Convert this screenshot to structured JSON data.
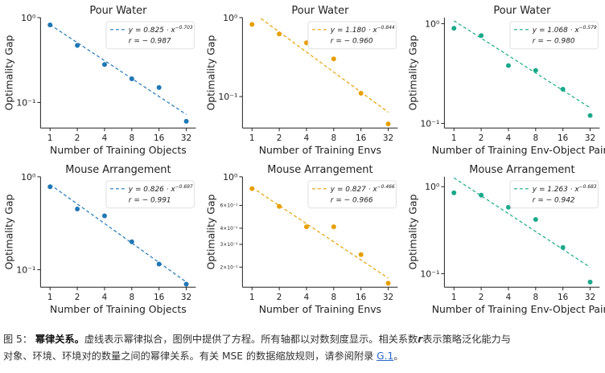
{
  "chart_data": [
    {
      "type": "scatter",
      "title": "Pour Water",
      "xlabel": "Number of Training Objects",
      "ylabel": "Optimality Gap",
      "x": [
        1,
        2,
        4,
        8,
        16,
        32
      ],
      "values": [
        0.82,
        0.47,
        0.28,
        0.19,
        0.15,
        0.06
      ],
      "color": "#1f77b4",
      "fit": {
        "a": 0.825,
        "b": 0.703
      },
      "equation": "y = 0.825 · x",
      "exponent": "−0.703",
      "r": "r = − 0.987",
      "ylim": [
        0.05,
        1.0
      ],
      "yticks": [
        {
          "v": 1.0,
          "t": "10⁰"
        },
        {
          "v": 0.1,
          "t": "10⁻¹"
        }
      ],
      "xticks": [
        "1",
        "2",
        "4",
        "8",
        "16",
        "32"
      ]
    },
    {
      "type": "scatter",
      "title": "Pour Water",
      "xlabel": "Number of Training Envs",
      "ylabel": "Optimality Gap",
      "x": [
        1,
        2,
        4,
        8,
        16,
        32
      ],
      "values": [
        0.82,
        0.62,
        0.48,
        0.3,
        0.11,
        0.045
      ],
      "color": "#e69f00",
      "fit": {
        "a": 1.18,
        "b": 0.844
      },
      "equation": "y = 1.180 · x",
      "exponent": "−0.844",
      "r": "r = − 0.960",
      "ylim": [
        0.04,
        1.0
      ],
      "yticks": [
        {
          "v": 1.0,
          "t": "10⁰"
        },
        {
          "v": 0.1,
          "t": "10⁻¹"
        }
      ],
      "xticks": [
        "1",
        "2",
        "4",
        "8",
        "16",
        "32"
      ]
    },
    {
      "type": "scatter",
      "title": "Pour Water",
      "xlabel": "Number of Training Env-Object Pairs",
      "ylabel": "Optimality Gap",
      "x": [
        1,
        2,
        4,
        8,
        16,
        32
      ],
      "values": [
        0.9,
        0.76,
        0.38,
        0.34,
        0.22,
        0.12
      ],
      "color": "#1aa98b",
      "fit": {
        "a": 1.068,
        "b": 0.579
      },
      "equation": "y = 1.068 · x",
      "exponent": "−0.579",
      "r": "r = − 0.980",
      "ylim": [
        0.09,
        1.15
      ],
      "yticks": [
        {
          "v": 1.0,
          "t": "10⁰"
        },
        {
          "v": 0.1,
          "t": "10⁻¹"
        }
      ],
      "xticks": [
        "1",
        "2",
        "4",
        "8",
        "16",
        "32"
      ]
    },
    {
      "type": "scatter",
      "title": "Mouse Arrangement",
      "xlabel": "Number of Training Objects",
      "ylabel": "Optimality Gap",
      "x": [
        1,
        2,
        4,
        8,
        16,
        32
      ],
      "values": [
        0.78,
        0.45,
        0.38,
        0.2,
        0.115,
        0.07
      ],
      "color": "#1f77b4",
      "fit": {
        "a": 0.826,
        "b": 0.697
      },
      "equation": "y = 0.826 · x",
      "exponent": "−0.697",
      "r": "r = − 0.991",
      "ylim": [
        0.065,
        1.0
      ],
      "yticks": [
        {
          "v": 1.0,
          "t": "10⁰"
        },
        {
          "v": 0.1,
          "t": "10⁻¹"
        }
      ],
      "xticks": [
        "1",
        "2",
        "4",
        "8",
        "16",
        "32"
      ]
    },
    {
      "type": "scatter",
      "title": "Mouse Arrangement",
      "xlabel": "Number of Training Envs",
      "ylabel": "Optimality Gap",
      "x": [
        1,
        2,
        4,
        8,
        16,
        32
      ],
      "values": [
        0.81,
        0.59,
        0.41,
        0.41,
        0.25,
        0.15
      ],
      "color": "#e69f00",
      "fit": {
        "a": 0.827,
        "b": 0.466
      },
      "equation": "y = 0.827 · x",
      "exponent": "−0.466",
      "r": "r = − 0.966",
      "ylim": [
        0.14,
        1.0
      ],
      "yticks": [
        {
          "v": 1.0,
          "t": "10⁰"
        },
        {
          "v": 0.6,
          "t": "6×10⁻¹"
        },
        {
          "v": 0.4,
          "t": "4×10⁻¹"
        },
        {
          "v": 0.3,
          "t": "3×10⁻¹"
        },
        {
          "v": 0.2,
          "t": "2×10⁻¹"
        }
      ],
      "xticks": [
        "1",
        "2",
        "4",
        "8",
        "16",
        "32"
      ]
    },
    {
      "type": "scatter",
      "title": "Mouse Arrangement",
      "xlabel": "Number of Training Env-Object Pairs",
      "ylabel": "Optimality Gap",
      "x": [
        1,
        2,
        4,
        8,
        16,
        32
      ],
      "values": [
        0.85,
        0.8,
        0.58,
        0.42,
        0.2,
        0.08
      ],
      "color": "#1aa98b",
      "fit": {
        "a": 1.263,
        "b": 0.683
      },
      "equation": "y = 1.263 · x",
      "exponent": "−0.683",
      "r": "r = − 0.942",
      "ylim": [
        0.07,
        1.3
      ],
      "yticks": [
        {
          "v": 1.0,
          "t": "10⁰"
        },
        {
          "v": 0.1,
          "t": "10⁻¹"
        }
      ],
      "xticks": [
        "1",
        "2",
        "4",
        "8",
        "16",
        "32"
      ]
    }
  ],
  "caption": {
    "fig_label": "图 5：",
    "bold_title": "幂律关系。",
    "text_1": "虚线表示幂律拟合，图例中提供了方程。所有轴都以对数刻度显示。相关系数",
    "r_symbol": "r",
    "text_2": "表示策略泛化能力与",
    "line2_a": "对象、环境、环境对的数量之间的幂律关系。有关 MSE 的数据缩放规则，请参阅附录 ",
    "link": "G.1",
    "line2_end": "。"
  }
}
